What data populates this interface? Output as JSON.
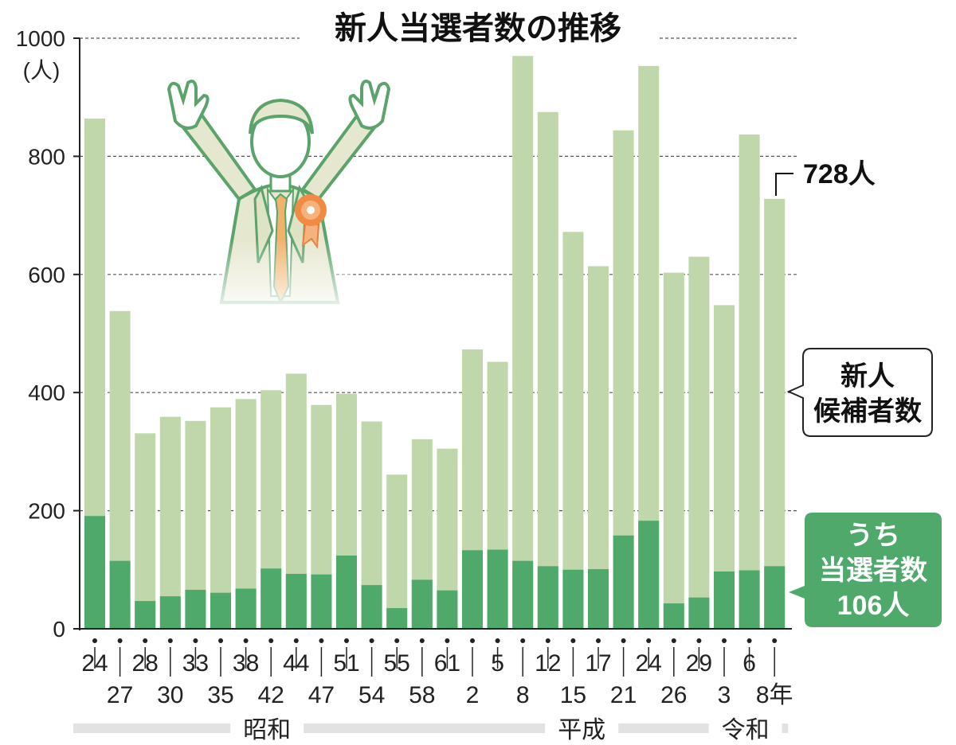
{
  "chart_data": {
    "type": "bar",
    "title": "新人当選者数の推移",
    "ylabel": "(人)",
    "ylim": [
      0,
      1000
    ],
    "yticks": [
      "0",
      "200",
      "400",
      "600",
      "800",
      "1000"
    ],
    "categories": [
      "24",
      "27",
      "28",
      "30",
      "33",
      "35",
      "38",
      "42",
      "44",
      "47",
      "51",
      "54",
      "55",
      "58",
      "61",
      "2",
      "5",
      "8",
      "12",
      "15",
      "17",
      "21",
      "24",
      "26",
      "29",
      "3",
      "6",
      "8年"
    ],
    "eras": [
      {
        "label": "昭和",
        "from": 0,
        "to": 14
      },
      {
        "label": "平成",
        "from": 15,
        "to": 24
      },
      {
        "label": "令和",
        "from": 25,
        "to": 27
      }
    ],
    "series": [
      {
        "name": "新人候補者数",
        "color": "#bfd7aa",
        "values": [
          864,
          538,
          331,
          359,
          352,
          375,
          389,
          404,
          432,
          379,
          398,
          351,
          261,
          321,
          305,
          473,
          452,
          970,
          875,
          672,
          614,
          844,
          953,
          603,
          630,
          548,
          837,
          728
        ]
      },
      {
        "name": "うち当選者数",
        "color": "#4fa96b",
        "values": [
          191,
          115,
          47,
          55,
          66,
          61,
          68,
          102,
          93,
          92,
          124,
          74,
          35,
          83,
          65,
          133,
          134,
          115,
          106,
          100,
          101,
          158,
          183,
          43,
          53,
          97,
          99,
          106
        ]
      }
    ],
    "legend": {
      "candidates": [
        "新人",
        "候補者数"
      ],
      "winners": [
        "うち",
        "当選者数",
        "106人"
      ]
    },
    "annotation": "728人"
  }
}
